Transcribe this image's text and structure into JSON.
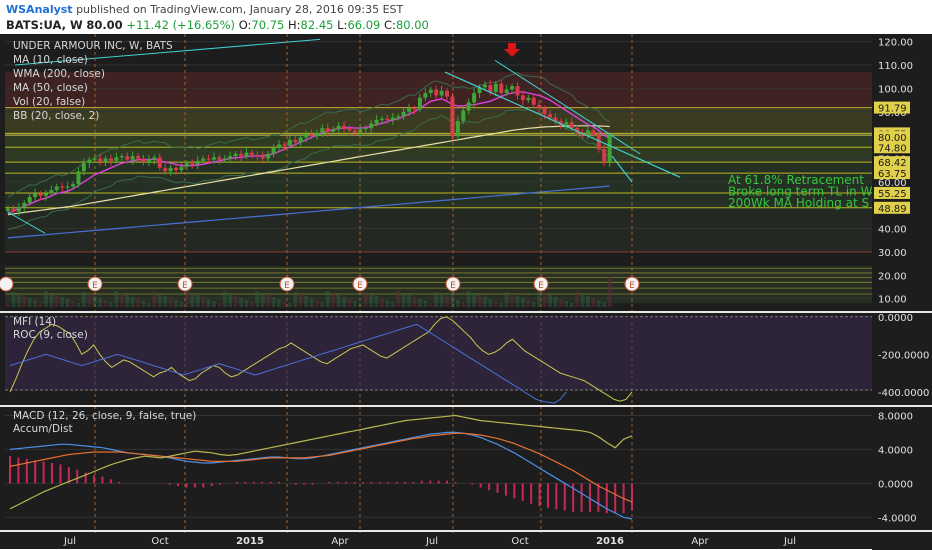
{
  "header": {
    "author": "WSAnalyst",
    "published_text": "published on TradingView.com, January 28, 2016 09:35 EST",
    "symbol": "BATS:UA, W",
    "last": "80.00",
    "change": "+11.42 (+16.65%)",
    "o_label": "O:",
    "o_value": "70.75",
    "h_label": "H:",
    "h_value": "82.45",
    "l_label": "L:",
    "l_value": "66.09",
    "c_label": "C:",
    "c_value": "80.00"
  },
  "legend": [
    "UNDER ARMOUR INC, W, BATS",
    "MA (10, close)",
    "WMA (200, close)",
    "MA (50, close)",
    "Vol (20, false)",
    "BB (20, close, 2)"
  ],
  "annotations": [
    "At 61.8% Retracement",
    "Broke long term TL in W",
    "200Wk MA Holding at S"
  ],
  "mfi_legend": [
    "MFI (14)",
    "ROC (9, close)"
  ],
  "macd_legend": [
    "MACD (12, 26, close, 9, false, true)",
    "Accum/Dist"
  ],
  "earnings_marker": "E",
  "colors": {
    "background": "#1d1d1d",
    "up_candle": "#3fa535",
    "down_candle": "#d83a4a",
    "ma10": "#e040e0",
    "ma50": "#e8e0a8",
    "wma200": "#4a70d8",
    "fib_line": "#d8d020",
    "trendline": "#40d0d0",
    "price_tag": "#e0d04a",
    "annotation_text": "#34c83c",
    "mfi": "#c8c850",
    "roc": "#4a70d8",
    "macd": "#4a90e8",
    "signal": "#e87030",
    "hist": "#c8285a",
    "accum": "#b8b850",
    "arrow": "#d81818"
  },
  "chart_data": [
    {
      "type": "candlestick",
      "title": "UNDER ARMOUR INC, W, BATS",
      "x_tick_labels": [
        "Jul",
        "Oct",
        "2015",
        "Apr",
        "Jul",
        "Oct",
        "2016",
        "Apr",
        "Jul"
      ],
      "y_ticks": [
        120.0,
        110.0,
        100.0,
        90.0,
        80.0,
        70.0,
        60.0,
        50.0,
        40.0,
        30.0,
        20.0,
        10.0
      ],
      "y_tick_labels": [
        "120.00",
        "110.00",
        "100.00",
        "90.00",
        "80.00",
        "70.00",
        "60.00",
        "50.00",
        "40.00",
        "30.00",
        "20.00",
        "10.00"
      ],
      "ylim": [
        6,
        122
      ],
      "price_tags": [
        {
          "value": 91.79,
          "label": "91.79"
        },
        {
          "value": 80.75,
          "label": "80.75"
        },
        {
          "value": 80.0,
          "label": "80.00"
        },
        {
          "value": 74.8,
          "label": "74.80"
        },
        {
          "value": 68.42,
          "label": "68.42"
        },
        {
          "value": 63.75,
          "label": "63.75"
        },
        {
          "value": 55.25,
          "label": "55.25"
        },
        {
          "value": 48.89,
          "label": "48.89"
        }
      ],
      "closes": [
        48.5,
        47.2,
        49.0,
        51.0,
        53.5,
        55.0,
        54.0,
        55.0,
        56.5,
        58.0,
        57.5,
        58.0,
        59.0,
        64.5,
        68.0,
        69.5,
        70.0,
        68.5,
        70.0,
        69.0,
        70.5,
        71.0,
        69.5,
        71.0,
        70.0,
        68.5,
        69.5,
        70.5,
        66.0,
        64.5,
        66.0,
        65.0,
        66.5,
        68.0,
        67.5,
        69.0,
        70.0,
        69.5,
        70.5,
        69.5,
        70.0,
        71.0,
        72.0,
        71.0,
        72.5,
        71.5,
        71.0,
        70.0,
        72.0,
        74.5,
        76.0,
        75.5,
        78.0,
        77.0,
        79.0,
        80.5,
        79.5,
        81.0,
        83.0,
        81.5,
        82.5,
        84.0,
        83.0,
        82.0,
        81.0,
        82.5,
        83.0,
        85.0,
        86.5,
        87.0,
        86.5,
        87.5,
        88.0,
        90.0,
        91.5,
        91.0,
        96.0,
        98.0,
        99.5,
        97.0,
        99.0,
        96.5,
        79.5,
        86.0,
        90.5,
        94.0,
        98.0,
        100.5,
        101.5,
        98.5,
        102.0,
        98.0,
        99.5,
        101.0,
        97.0,
        95.0,
        96.0,
        93.0,
        91.5,
        89.0,
        87.5,
        86.0,
        84.5,
        85.5,
        83.0,
        81.0,
        80.5,
        82.0,
        80.0,
        74.0,
        68.5,
        80.0
      ],
      "ma10": [
        46.5,
        47.5,
        48.5,
        49.5,
        50.5,
        51.5,
        52.5,
        53.0,
        54.0,
        55.0,
        55.5,
        56.0,
        57.0,
        58.5,
        60.0,
        61.5,
        63.0,
        64.0,
        65.0,
        66.0,
        67.0,
        68.0,
        68.5,
        69.0,
        69.5,
        69.5,
        69.5,
        69.8,
        69.0,
        68.5,
        68.0,
        67.5,
        67.0,
        67.0,
        67.0,
        67.2,
        67.5,
        68.0,
        68.5,
        69.0,
        69.5,
        70.0,
        70.3,
        70.5,
        70.8,
        71.0,
        71.0,
        71.2,
        71.5,
        72.0,
        73.0,
        74.0,
        75.0,
        76.0,
        77.0,
        78.0,
        79.0,
        80.0,
        81.0,
        81.8,
        82.3,
        82.8,
        83.0,
        83.2,
        83.0,
        83.0,
        83.2,
        83.8,
        84.5,
        85.0,
        85.8,
        86.5,
        87.0,
        88.0,
        89.0,
        90.0,
        91.5,
        93.0,
        94.5,
        95.0,
        95.5,
        94.5,
        93.0,
        92.5,
        92.5,
        93.0,
        93.0,
        93.5,
        94.0,
        94.5,
        95.5,
        96.5,
        97.5,
        98.0,
        98.5,
        98.5,
        98.0,
        97.5,
        97.0,
        96.0,
        95.0,
        93.5,
        92.0,
        90.5,
        89.0,
        87.5,
        86.0,
        84.5,
        83.5,
        82.0,
        80.0,
        78.5
      ],
      "ma50": [
        46.0,
        46.3,
        46.6,
        46.9,
        47.2,
        47.5,
        47.8,
        48.1,
        48.4,
        48.7,
        49.0,
        49.3,
        49.6,
        50.0,
        50.4,
        50.8,
        51.2,
        51.6,
        52.0,
        52.4,
        52.8,
        53.2,
        53.6,
        54.0,
        54.4,
        54.8,
        55.2,
        55.6,
        56.0,
        56.4,
        56.8,
        57.2,
        57.6,
        58.0,
        58.4,
        58.8,
        59.2,
        59.6,
        60.0,
        60.4,
        60.8,
        61.2,
        61.6,
        62.0,
        62.4,
        62.8,
        63.2,
        63.6,
        64.0,
        64.4,
        64.8,
        65.2,
        65.6,
        66.0,
        66.4,
        66.8,
        67.2,
        67.6,
        68.0,
        68.4,
        68.8,
        69.2,
        69.6,
        70.0,
        70.4,
        70.8,
        71.2,
        71.6,
        72.0,
        72.4,
        72.8,
        73.2,
        73.6,
        74.0,
        74.4,
        74.8,
        75.2,
        75.6,
        76.0,
        76.4,
        76.8,
        77.2,
        77.6,
        78.0,
        78.4,
        78.8,
        79.2,
        79.6,
        80.0,
        80.4,
        80.8,
        81.2,
        81.6,
        82.0,
        82.3,
        82.6,
        82.9,
        83.1,
        83.3,
        83.5,
        83.6,
        83.7,
        83.8,
        83.9,
        84.0,
        84.0,
        84.0,
        84.0,
        84.0,
        83.9,
        83.8,
        83.7
      ],
      "wma200": [
        36.0,
        36.2,
        36.4,
        36.6,
        36.8,
        37.0,
        37.2,
        37.4,
        37.6,
        37.8,
        38.0,
        38.2,
        38.4,
        38.6,
        38.8,
        39.0,
        39.2,
        39.4,
        39.6,
        39.8,
        40.0,
        40.2,
        40.4,
        40.6,
        40.8,
        41.0,
        41.2,
        41.4,
        41.6,
        41.8,
        42.0,
        42.2,
        42.4,
        42.6,
        42.8,
        43.0,
        43.2,
        43.4,
        43.6,
        43.8,
        44.0,
        44.2,
        44.4,
        44.6,
        44.8,
        45.0,
        45.2,
        45.4,
        45.6,
        45.8,
        46.0,
        46.2,
        46.4,
        46.6,
        46.8,
        47.0,
        47.2,
        47.4,
        47.6,
        47.8,
        48.0,
        48.2,
        48.4,
        48.6,
        48.8,
        49.0,
        49.2,
        49.4,
        49.6,
        49.8,
        50.0,
        50.2,
        50.4,
        50.6,
        50.8,
        51.0,
        51.2,
        51.4,
        51.6,
        51.8,
        52.0,
        52.2,
        52.4,
        52.6,
        52.8,
        53.0,
        53.2,
        53.4,
        53.6,
        53.8,
        54.0,
        54.2,
        54.4,
        54.6,
        54.8,
        55.0,
        55.2,
        55.4,
        55.6,
        55.8,
        56.0,
        56.2,
        56.4,
        56.6,
        56.8,
        57.0,
        57.2,
        57.4,
        57.6,
        57.8,
        58.0,
        58.2
      ],
      "earnings_weeks": [
        9,
        22,
        37,
        48,
        63,
        77,
        100
      ]
    },
    {
      "type": "line",
      "title": "MFI (14) / ROC (9, close)",
      "y_tick_labels": [
        "0.0000",
        "-200.0000",
        "-400.0000"
      ],
      "y_ticks": [
        0,
        -200,
        -400
      ],
      "ylim": [
        -470,
        20
      ],
      "series": [
        {
          "name": "MFI (14)",
          "values": [
            -400,
            -330,
            -250,
            -180,
            -120,
            -80,
            -60,
            -40,
            -50,
            -70,
            -90,
            -140,
            -200,
            -180,
            -150,
            -200,
            -240,
            -270,
            -250,
            -230,
            -240,
            -260,
            -280,
            -300,
            -320,
            -300,
            -290,
            -270,
            -300,
            -320,
            -340,
            -330,
            -300,
            -280,
            -260,
            -270,
            -300,
            -320,
            -310,
            -290,
            -270,
            -250,
            -230,
            -210,
            -190,
            -170,
            -160,
            -140,
            -160,
            -180,
            -200,
            -220,
            -240,
            -250,
            -230,
            -210,
            -190,
            -170,
            -160,
            -150,
            -170,
            -190,
            -210,
            -220,
            -200,
            -180,
            -160,
            -140,
            -120,
            -100,
            -80,
            -40,
            -10,
            0,
            -20,
            -50,
            -80,
            -110,
            -150,
            -180,
            -200,
            -190,
            -170,
            -140,
            -120,
            -150,
            -180,
            -200,
            -220,
            -240,
            -260,
            -280,
            -300,
            -310,
            -320,
            -330,
            -340,
            -360,
            -380,
            -400,
            -420,
            -440,
            -450,
            -440,
            -400
          ]
        },
        {
          "name": "ROC (9, close)",
          "values": [
            -260,
            -250,
            -240,
            -230,
            -220,
            -210,
            -200,
            -210,
            -220,
            -230,
            -240,
            -250,
            -260,
            -250,
            -240,
            -230,
            -220,
            -210,
            -200,
            -210,
            -220,
            -230,
            -240,
            -250,
            -260,
            -270,
            -280,
            -290,
            -300,
            -310,
            -300,
            -290,
            -280,
            -270,
            -260,
            -250,
            -260,
            -270,
            -280,
            -290,
            -300,
            -310,
            -300,
            -290,
            -280,
            -270,
            -260,
            -250,
            -240,
            -230,
            -220,
            -210,
            -200,
            -190,
            -180,
            -170,
            -160,
            -150,
            -140,
            -130,
            -120,
            -110,
            -100,
            -90,
            -80,
            -70,
            -60,
            -50,
            -40,
            -60,
            -80,
            -100,
            -120,
            -140,
            -160,
            -180,
            -200,
            -220,
            -240,
            -260,
            -280,
            -300,
            -320,
            -340,
            -360,
            -380,
            -400,
            -420,
            -440,
            -450,
            -455,
            -460,
            -440,
            -400
          ]
        }
      ]
    },
    {
      "type": "line",
      "title": "MACD (12, 26, close, 9, false, true) / Accum/Dist",
      "y_tick_labels": [
        "8.0000",
        "4.0000",
        "0.0000",
        "-4.0000"
      ],
      "y_ticks": [
        8,
        4,
        0,
        -4
      ],
      "ylim": [
        -5.5,
        9.0
      ],
      "series": [
        {
          "name": "MACD",
          "values": [
            4.0,
            4.1,
            4.2,
            4.3,
            4.4,
            4.5,
            4.6,
            4.6,
            4.5,
            4.4,
            4.3,
            4.2,
            4.0,
            3.8,
            3.6,
            3.5,
            3.4,
            3.3,
            3.2,
            3.0,
            2.8,
            2.6,
            2.5,
            2.4,
            2.4,
            2.5,
            2.6,
            2.7,
            2.8,
            2.9,
            3.0,
            3.1,
            3.1,
            3.0,
            2.9,
            2.9,
            3.0,
            3.2,
            3.4,
            3.6,
            3.8,
            4.0,
            4.2,
            4.4,
            4.6,
            4.8,
            5.0,
            5.2,
            5.4,
            5.6,
            5.8,
            5.9,
            6.0,
            6.0,
            5.9,
            5.7,
            5.4,
            5.0,
            4.6,
            4.1,
            3.6,
            3.0,
            2.4,
            1.8,
            1.2,
            0.6,
            0.0,
            -0.6,
            -1.2,
            -1.8,
            -2.4,
            -3.0,
            -3.5,
            -4.0,
            -4.2
          ]
        },
        {
          "name": "Signal",
          "values": [
            2.0,
            2.2,
            2.4,
            2.6,
            2.8,
            3.0,
            3.2,
            3.4,
            3.5,
            3.6,
            3.7,
            3.7,
            3.7,
            3.7,
            3.6,
            3.5,
            3.4,
            3.3,
            3.2,
            3.1,
            3.0,
            2.9,
            2.8,
            2.7,
            2.6,
            2.6,
            2.6,
            2.6,
            2.7,
            2.8,
            2.9,
            3.0,
            3.0,
            3.0,
            3.0,
            3.0,
            3.1,
            3.2,
            3.3,
            3.5,
            3.7,
            3.9,
            4.1,
            4.3,
            4.5,
            4.7,
            4.9,
            5.1,
            5.3,
            5.4,
            5.6,
            5.7,
            5.8,
            5.9,
            5.9,
            5.8,
            5.7,
            5.5,
            5.3,
            5.0,
            4.7,
            4.3,
            3.9,
            3.5,
            3.0,
            2.5,
            2.0,
            1.5,
            0.9,
            0.3,
            -0.3,
            -0.8,
            -1.3,
            -1.8,
            -2.2
          ]
        },
        {
          "name": "Accum/Dist",
          "values": [
            -3.0,
            -2.5,
            -2.0,
            -1.5,
            -1.0,
            -0.6,
            -0.2,
            0.2,
            0.6,
            1.0,
            1.4,
            1.8,
            2.2,
            2.5,
            2.8,
            3.0,
            3.2,
            3.1,
            3.0,
            3.2,
            3.4,
            3.6,
            3.8,
            3.7,
            3.6,
            3.4,
            3.3,
            3.4,
            3.6,
            3.8,
            4.0,
            4.2,
            4.4,
            4.6,
            4.8,
            5.0,
            5.2,
            5.4,
            5.6,
            5.8,
            6.0,
            6.2,
            6.4,
            6.6,
            6.8,
            7.0,
            7.2,
            7.4,
            7.5,
            7.6,
            7.7,
            7.8,
            7.9,
            8.0,
            7.8,
            7.6,
            7.4,
            7.3,
            7.2,
            7.1,
            7.0,
            6.9,
            6.8,
            6.7,
            6.6,
            6.5,
            6.4,
            6.3,
            6.2,
            6.0,
            5.5,
            4.8,
            4.2,
            5.2,
            5.6
          ]
        }
      ]
    }
  ]
}
